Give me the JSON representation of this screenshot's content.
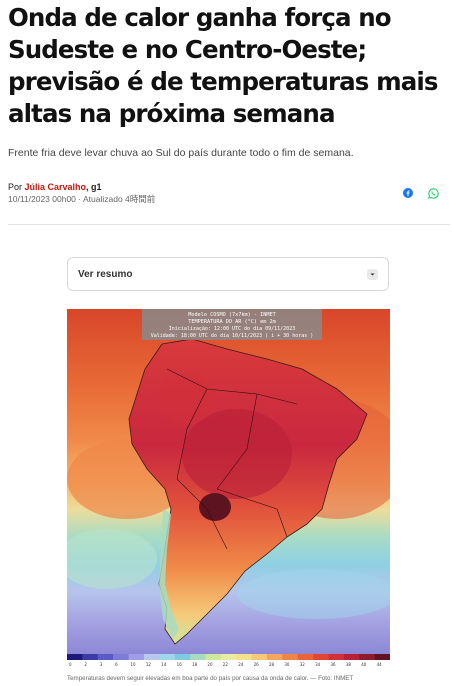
{
  "article": {
    "headline": "Onda de calor ganha força no Sudeste e no Centro-Oeste; previsão é de temperaturas mais altas na próxima semana",
    "subheadline": "Frente fria deve levar chuva ao Sul do país durante todo o fim de semana.",
    "byline_prefix": "Por ",
    "author": "Júlia Carvalho",
    "outlet": ", g1",
    "published": "10/11/2023 00h00 · Atualizado 4時間前"
  },
  "share": {
    "facebook_icon": "facebook-icon",
    "whatsapp_icon": "whatsapp-icon",
    "colors": {
      "facebook": "#1877f2",
      "whatsapp": "#25d366"
    }
  },
  "summary": {
    "label": "Ver resumo"
  },
  "map": {
    "header_line1": "Modelo COSMO (7x7km) - INMET",
    "header_line2": "TEMPERATURA DO AR (°C) em 2m",
    "header_line3": "Inicialização: 12:00 UTC do dia 09/11/2023",
    "header_line4": "Validade: 18:00 UTC do dia 10/11/2023 ( i + 30 horas )",
    "scale_labels": [
      "0",
      "2",
      "3",
      "6",
      "10",
      "12",
      "14",
      "16",
      "18",
      "20",
      "22",
      "24",
      "26",
      "28",
      "30",
      "32",
      "34",
      "36",
      "38",
      "40",
      "44"
    ],
    "scale_colors": [
      "#1a1a7a",
      "#3b3ba8",
      "#5a5ac8",
      "#7c7cd8",
      "#9e9ee6",
      "#b7c7ee",
      "#9fd6ec",
      "#7ccbe0",
      "#a8dcc0",
      "#cfe8a0",
      "#eaeaa0",
      "#f5e08c",
      "#f6c978",
      "#f3a660",
      "#ee8448",
      "#e9643a",
      "#e24436",
      "#d2303a",
      "#b91f38",
      "#8e1a2e",
      "#5e1320"
    ]
  },
  "caption": "Temperaturas devem seguir elevadas em boa parte do país por causa da onda de calor. — Foto: INMET"
}
